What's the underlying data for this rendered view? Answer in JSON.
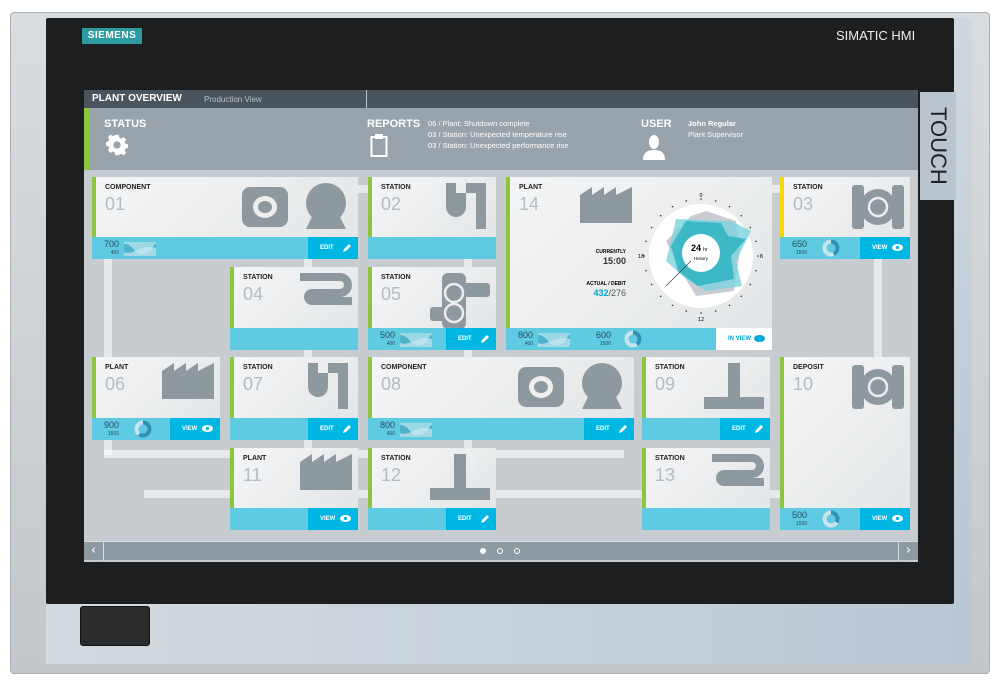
{
  "device": {
    "brand": "SIEMENS",
    "model": "SIMATIC HMI",
    "side_label": "TOUCH"
  },
  "header": {
    "title": "PLANT OVERVIEW",
    "subtitle": "Production View"
  },
  "status": {
    "label": "STATUS",
    "icon": "gear-icon"
  },
  "reports": {
    "label": "REPORTS",
    "icon": "clipboard-icon",
    "items": [
      "06 / Plant: Shutdown complete",
      "03 / Station: Unexpected temperature rise",
      "03 / Station: Unexpected performance rise"
    ]
  },
  "user": {
    "label": "USER",
    "icon": "user-icon",
    "name": "John Regular",
    "role": "Plant Supervisor"
  },
  "colors": {
    "ok": "#8cc63f",
    "warning": "#f5d800",
    "accent": "#00b7e3",
    "footer": "#5ecbe3"
  },
  "tiles": [
    {
      "type": "COMPONENT",
      "number": "01",
      "status": "ok",
      "icon": "pump-icon",
      "footer": {
        "value": "700",
        "sub": "400",
        "gauge": "wave",
        "action": "EDIT"
      }
    },
    {
      "type": "STATION",
      "number": "02",
      "status": "ok",
      "icon": "pipe-icon",
      "footer": null
    },
    {
      "type": "PLANT",
      "number": "14",
      "status": "ok",
      "icon": "factory-icon",
      "footer": {
        "value": "800",
        "sub": "400",
        "gauge": "wave",
        "value2": "600",
        "sub2": "1500",
        "action": "IN VIEW"
      }
    },
    {
      "type": "STATION",
      "number": "03",
      "status": "warning",
      "icon": "recycle-icon",
      "footer": {
        "value": "650",
        "sub": "1500",
        "gauge": "donut",
        "action": "VIEW"
      }
    },
    {
      "type": "STATION",
      "number": "04",
      "status": "ok",
      "icon": "coil-icon",
      "footer": null
    },
    {
      "type": "STATION",
      "number": "05",
      "status": "ok",
      "icon": "valve-icon",
      "footer": {
        "value": "500",
        "sub": "400",
        "gauge": "wave",
        "action": "EDIT"
      }
    },
    {
      "type": "PLANT",
      "number": "06",
      "status": "ok",
      "icon": "factory-icon",
      "footer": {
        "value": "900",
        "sub": "1500",
        "gauge": "donut",
        "action": "VIEW"
      }
    },
    {
      "type": "STATION",
      "number": "07",
      "status": "ok",
      "icon": "pipe-icon",
      "footer": {
        "action": "EDIT"
      }
    },
    {
      "type": "COMPONENT",
      "number": "08",
      "status": "ok",
      "icon": "pump-icon",
      "footer": {
        "value": "800",
        "sub": "400",
        "gauge": "wave",
        "action": "EDIT"
      }
    },
    {
      "type": "STATION",
      "number": "09",
      "status": "ok",
      "icon": "tap-icon",
      "footer": {
        "action": "EDIT"
      }
    },
    {
      "type": "DEPOSIT",
      "number": "10",
      "status": "ok",
      "icon": "recycle-icon",
      "footer": {
        "value": "500",
        "sub": "1500",
        "gauge": "donut",
        "action": "VIEW"
      }
    },
    {
      "type": "PLANT",
      "number": "11",
      "status": "ok",
      "icon": "factory-icon",
      "footer": {
        "action": "VIEW"
      }
    },
    {
      "type": "STATION",
      "number": "12",
      "status": "ok",
      "icon": "tap-icon",
      "footer": {
        "action": "EDIT"
      }
    },
    {
      "type": "STATION",
      "number": "13",
      "status": "ok",
      "icon": "coil-icon",
      "footer": null
    }
  ],
  "plant14": {
    "currently_label": "CURRENTLY",
    "currently": "15:00",
    "actual_label": "ACTUAL / DEBIT",
    "actual": "432",
    "debit": "/276",
    "history_value": "24",
    "history_unit": "hr",
    "history_label": "History",
    "dial_labels": [
      "0",
      "6",
      "12",
      "18"
    ]
  },
  "nav": {
    "prev": "‹",
    "next": "›",
    "pages": 3,
    "current": 1
  }
}
